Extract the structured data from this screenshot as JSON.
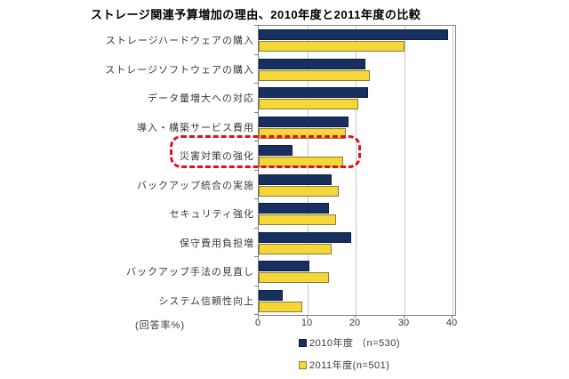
{
  "chart_data": {
    "type": "bar",
    "orientation": "horizontal",
    "title": "ストレージ関連予算増加の理由、2010年度と2011年度の比較",
    "categories": [
      "ストレージハードウェアの購入",
      "ストレージソフトウェアの購入",
      "データ量増大への対応",
      "導入・構築サービス費用",
      "災害対策の強化",
      "バックアップ統合の実施",
      "セキュリティ強化",
      "保守費用負担増",
      "バックアップ手法の見直し",
      "システム信頼性向上"
    ],
    "series": [
      {
        "name": "2010年度 （n=530)",
        "color": "#17305f",
        "border_color": "#0b1e3e",
        "values": [
          39,
          22,
          22.5,
          18.5,
          7,
          15,
          14.5,
          19,
          10.5,
          5
        ]
      },
      {
        "name": "2011年度(n=501)",
        "color": "#f5d837",
        "border_color": "#8c7b3c",
        "values": [
          30,
          23,
          20.5,
          18,
          17.5,
          16.5,
          16,
          15,
          14.5,
          9
        ]
      }
    ],
    "xlabel": "(回答率%)",
    "x_ticks": [
      "0",
      "10",
      "20",
      "30",
      "40"
    ],
    "xlim": [
      0,
      40
    ],
    "grid": "vertical-gridlines-on",
    "legend_position": "bottom",
    "highlight": {
      "category": "災害対策の強化",
      "index": 4,
      "style": "red-dashed-rounded-box",
      "color": "#e0101c"
    }
  }
}
